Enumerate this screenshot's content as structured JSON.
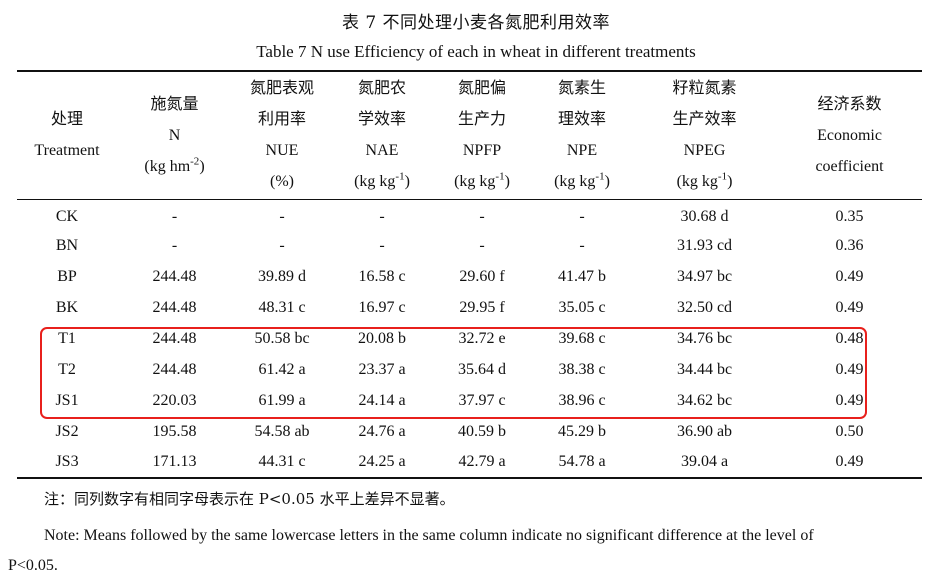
{
  "title_cn": "表 7  不同处理小麦各氮肥利用效率",
  "title_en": "Table 7 N use Efficiency of each in wheat in different treatments",
  "headers": [
    {
      "lines": [
        "处理",
        "Treatment"
      ]
    },
    {
      "lines": [
        "施氮量",
        "N",
        "(kg hm",
        "-2",
        ")"
      ]
    },
    {
      "lines": [
        "氮肥表观",
        "利用率",
        "NUE",
        "(%)"
      ]
    },
    {
      "lines": [
        "氮肥农",
        "学效率",
        "NAE",
        "(kg kg",
        "-1",
        ")"
      ]
    },
    {
      "lines": [
        "氮肥偏",
        "生产力",
        "NPFP",
        "(kg kg",
        "-1",
        ")"
      ]
    },
    {
      "lines": [
        "氮素生",
        "理效率",
        "NPE",
        "(kg kg",
        "-1",
        ")"
      ]
    },
    {
      "lines": [
        "籽粒氮素",
        "生产效率",
        "NPEG",
        "(kg kg",
        "-1",
        ")"
      ]
    },
    {
      "lines": [
        "经济系数",
        "Economic",
        "coefficient"
      ]
    }
  ],
  "rows": [
    [
      "CK",
      "-",
      "-",
      "-",
      "-",
      "-",
      "30.68 d",
      "0.35"
    ],
    [
      "BN",
      "-",
      "-",
      "-",
      "-",
      "-",
      "31.93 cd",
      "0.36"
    ],
    [
      "BP",
      "244.48",
      "39.89 d",
      "16.58 c",
      "29.60 f",
      "41.47 b",
      "34.97 bc",
      "0.49"
    ],
    [
      "BK",
      "244.48",
      "48.31 c",
      "16.97 c",
      "29.95 f",
      "35.05 c",
      "32.50 cd",
      "0.49"
    ],
    [
      "T1",
      "244.48",
      "50.58 bc",
      "20.08 b",
      "32.72 e",
      "39.68 c",
      "34.76 bc",
      "0.48"
    ],
    [
      "T2",
      "244.48",
      "61.42 a",
      "23.37 a",
      "35.64 d",
      "38.38 c",
      "34.44 bc",
      "0.49"
    ],
    [
      "JS1",
      "220.03",
      "61.99 a",
      "24.14 a",
      "37.97 c",
      "38.96 c",
      "34.62 bc",
      "0.49"
    ],
    [
      "JS2",
      "195.58",
      "54.58 ab",
      "24.76 a",
      "40.59 b",
      "45.29 b",
      "36.90 ab",
      "0.50"
    ],
    [
      "JS3",
      "171.13",
      "44.31 c",
      "24.25 a",
      "42.79 a",
      "54.78 a",
      "39.04 a",
      "0.49"
    ]
  ],
  "note_cn": "注：同列数字有相同字母表示在 P<0.05 水平上差异不显著。",
  "note_en_line1": "Note: Means followed by the same lowercase letters in the same column indicate no significant difference at the level of",
  "note_en_line2": "P<0.05.",
  "highlight_color": "#e8201c"
}
